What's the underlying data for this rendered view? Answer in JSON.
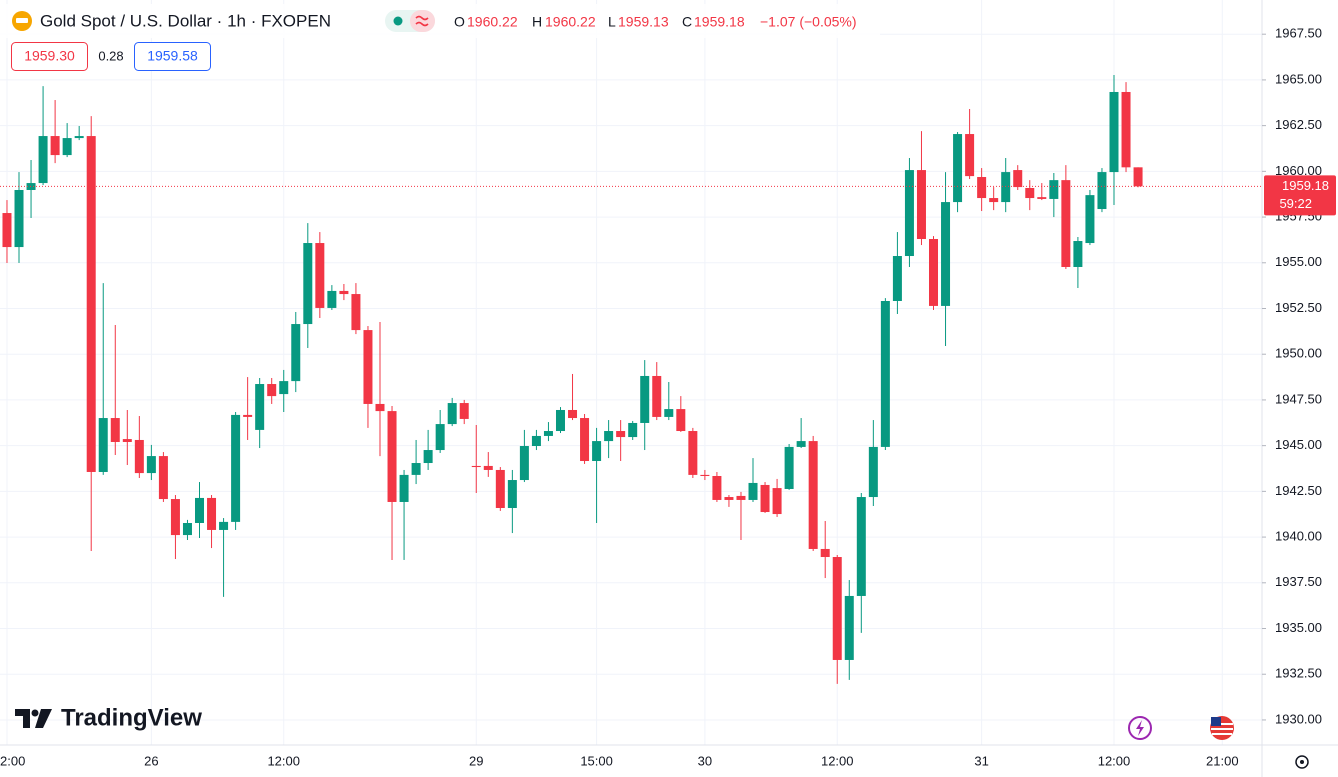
{
  "chart_data": {
    "type": "candlestick",
    "title": "Gold Spot / U.S. Dollar · 1h · FXOPEN",
    "ohlc_labels": [
      "O",
      "H",
      "L",
      "C"
    ],
    "change": "−1.07 (−0.05%)",
    "bid": "1959.30",
    "spread": "0.28",
    "ask": "1959.58",
    "countdown": "59:22",
    "brand": "TradingView",
    "up_color": "#089981",
    "down_color": "#f23645",
    "grid": true,
    "open": [
      1957.72,
      1955.86,
      1958.98,
      1959.36,
      1961.93,
      1960.89,
      1961.82,
      1961.93,
      1943.56,
      1946.51,
      1945.36,
      1945.31,
      1943.5,
      1944.43,
      1942.08,
      1940.11,
      1940.77,
      1942.14,
      1940.39,
      1940.83,
      1946.68,
      1945.86,
      1948.37,
      1947.82,
      1948.53,
      1951.65,
      1956.08,
      1952.53,
      1953.46,
      1953.29,
      1951.32,
      1947.28,
      1946.89,
      1941.92,
      1943.4,
      1944.05,
      1944.76,
      1946.18,
      1947.33,
      1943.89,
      1943.89,
      1943.67,
      1941.59,
      1943.12,
      1944.98,
      1945.53,
      1945.8,
      1946.95,
      1946.51,
      1944.16,
      1945.25,
      1945.8,
      1945.47,
      1946.24,
      1948.81,
      1946.57,
      1947.0,
      1945.8,
      1943.4,
      1943.34,
      1942.19,
      1942.25,
      1942.03,
      1942.85,
      1942.68,
      1942.63,
      1944.93,
      1945.25,
      1939.35,
      1938.91,
      1933.28,
      1936.78,
      1942.19,
      1944.93,
      1952.91,
      1955.37,
      1960.07,
      1956.3,
      1952.64,
      1958.32,
      1962.04,
      1959.69,
      1958.54,
      1958.32,
      1960.07,
      1959.09,
      1958.59,
      1958.49,
      1959.52,
      1954.77,
      1956.08,
      1957.94,
      1959.96,
      1964.34,
      1960.22
    ],
    "high": [
      1958.43,
      1959.96,
      1960.62,
      1964.66,
      1963.9,
      1962.64,
      1962.48,
      1963.02,
      1953.89,
      1951.6,
      1946.95,
      1946.62,
      1945.04,
      1944.65,
      1942.3,
      1940.94,
      1943.01,
      1942.3,
      1941.04,
      1946.84,
      1948.75,
      1948.7,
      1948.7,
      1949.14,
      1952.31,
      1957.17,
      1956.68,
      1953.78,
      1953.84,
      1953.89,
      1951.54,
      1951.76,
      1947.17,
      1943.67,
      1945.31,
      1945.86,
      1946.95,
      1947.61,
      1947.5,
      1946.13,
      1944.65,
      1943.83,
      1943.67,
      1945.86,
      1945.86,
      1946.29,
      1947.11,
      1948.92,
      1946.73,
      1945.97,
      1946.4,
      1946.4,
      1946.35,
      1949.68,
      1949.57,
      1948.48,
      1947.71,
      1945.97,
      1943.67,
      1943.56,
      1942.3,
      1942.47,
      1944.32,
      1943.01,
      1943.18,
      1945.09,
      1946.51,
      1945.53,
      1940.88,
      1939.02,
      1937.65,
      1942.41,
      1946.4,
      1953.07,
      1956.68,
      1960.73,
      1962.2,
      1956.46,
      1959.96,
      1962.15,
      1963.41,
      1960.18,
      1959.14,
      1960.73,
      1960.34,
      1959.52,
      1959.36,
      1959.91,
      1960.34,
      1956.41,
      1958.98,
      1960.18,
      1965.27,
      1964.88,
      1960.22
    ],
    "low": [
      1954.99,
      1954.99,
      1957.45,
      1959.25,
      1960.45,
      1960.78,
      1961.71,
      1939.24,
      1943.4,
      1944.49,
      1943.94,
      1943.23,
      1943.12,
      1941.92,
      1938.8,
      1939.84,
      1939.95,
      1939.4,
      1936.73,
      1940.39,
      1945.31,
      1944.87,
      1947.28,
      1946.84,
      1947.93,
      1950.34,
      1951.98,
      1952.42,
      1952.96,
      1951.1,
      1945.97,
      1944.43,
      1938.75,
      1938.75,
      1942.9,
      1943.67,
      1944.6,
      1946.07,
      1946.18,
      1942.41,
      1943.29,
      1941.43,
      1940.22,
      1943.01,
      1944.76,
      1945.25,
      1945.69,
      1946.4,
      1944.0,
      1940.77,
      1944.32,
      1944.16,
      1945.31,
      1944.76,
      1946.4,
      1946.4,
      1945.75,
      1943.23,
      1943.12,
      1941.92,
      1941.65,
      1939.84,
      1941.92,
      1941.32,
      1941.1,
      1942.58,
      1944.87,
      1939.24,
      1937.76,
      1931.97,
      1932.19,
      1934.76,
      1941.7,
      1944.76,
      1952.2,
      1954.77,
      1955.97,
      1952.42,
      1950.45,
      1957.77,
      1959.58,
      1957.83,
      1957.88,
      1957.77,
      1958.98,
      1957.88,
      1958.43,
      1957.5,
      1954.66,
      1953.62,
      1955.97,
      1957.77,
      1958.16,
      1959.96,
      1959.13
    ],
    "close": [
      1955.86,
      1958.98,
      1959.36,
      1961.93,
      1960.89,
      1961.82,
      1961.93,
      1943.56,
      1946.51,
      1945.2,
      1945.2,
      1943.5,
      1944.43,
      1942.08,
      1940.11,
      1940.77,
      1942.14,
      1940.39,
      1940.83,
      1946.68,
      1946.57,
      1948.37,
      1947.71,
      1948.53,
      1951.65,
      1956.08,
      1952.53,
      1953.46,
      1953.29,
      1951.32,
      1947.28,
      1946.89,
      1941.92,
      1943.4,
      1944.05,
      1944.76,
      1946.18,
      1947.33,
      1946.46,
      1943.83,
      1943.67,
      1941.59,
      1943.12,
      1944.98,
      1945.53,
      1945.8,
      1946.95,
      1946.51,
      1944.16,
      1945.25,
      1945.8,
      1945.47,
      1946.24,
      1948.81,
      1946.57,
      1947.0,
      1945.8,
      1943.4,
      1943.34,
      1942.03,
      1942.03,
      1942.03,
      1942.96,
      1941.37,
      1941.26,
      1944.93,
      1945.25,
      1939.35,
      1938.91,
      1933.28,
      1936.78,
      1942.19,
      1944.93,
      1952.91,
      1955.37,
      1960.07,
      1956.3,
      1952.64,
      1958.32,
      1962.04,
      1959.74,
      1958.54,
      1958.32,
      1959.96,
      1959.14,
      1958.54,
      1958.49,
      1959.52,
      1954.77,
      1956.19,
      1958.7,
      1959.96,
      1964.34,
      1960.22,
      1959.18
    ],
    "xlim": [
      -0.58,
      104.3
    ],
    "xticks": [
      {
        "value": 0,
        "label": "2:00"
      },
      {
        "value": 12,
        "label": "26"
      },
      {
        "value": 23,
        "label": "12:00"
      },
      {
        "value": 39,
        "label": "29"
      },
      {
        "value": 49,
        "label": "15:00"
      },
      {
        "value": 58,
        "label": "30"
      },
      {
        "value": 69,
        "label": "12:00"
      },
      {
        "value": 81,
        "label": "31"
      },
      {
        "value": 92,
        "label": "12:00"
      },
      {
        "value": 101,
        "label": "21:00"
      }
    ],
    "ylim": [
      1928.63,
      1969.37
    ],
    "yticks": [
      {
        "value": 1930,
        "label": "1930.00"
      },
      {
        "value": 1932.5,
        "label": "1932.50"
      },
      {
        "value": 1935,
        "label": "1935.00"
      },
      {
        "value": 1937.5,
        "label": "1937.50"
      },
      {
        "value": 1940,
        "label": "1940.00"
      },
      {
        "value": 1942.5,
        "label": "1942.50"
      },
      {
        "value": 1945,
        "label": "1945.00"
      },
      {
        "value": 1947.5,
        "label": "1947.50"
      },
      {
        "value": 1950,
        "label": "1950.00"
      },
      {
        "value": 1952.5,
        "label": "1952.50"
      },
      {
        "value": 1955,
        "label": "1955.00"
      },
      {
        "value": 1957.5,
        "label": "1957.50"
      },
      {
        "value": 1960,
        "label": "1960.00"
      },
      {
        "value": 1962.5,
        "label": "1962.50"
      },
      {
        "value": 1965,
        "label": "1965.00"
      },
      {
        "value": 1967.5,
        "label": "1967.50"
      }
    ]
  }
}
